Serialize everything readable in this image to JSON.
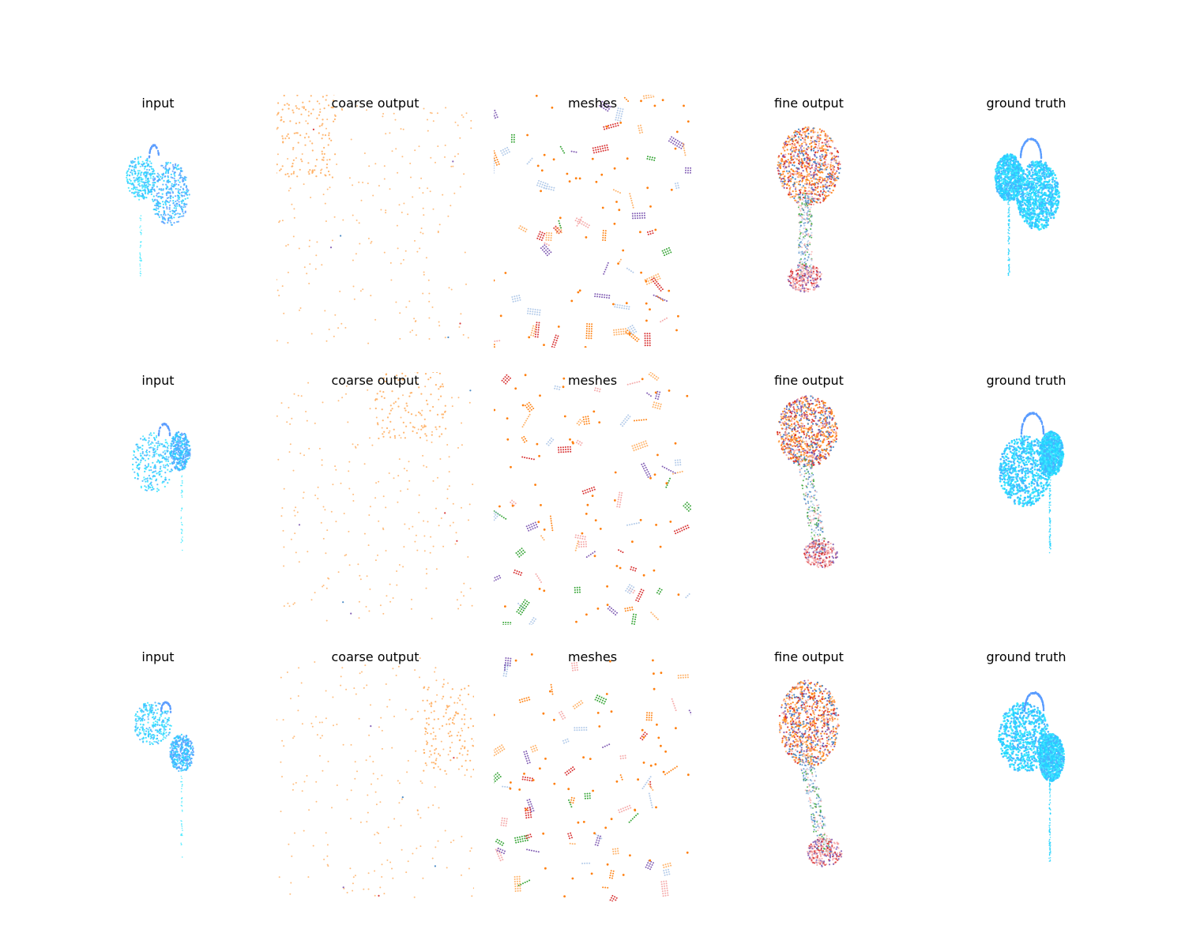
{
  "figure": {
    "rows": [
      {
        "id": "row-1",
        "panels": [
          {
            "key": "input",
            "title": "input",
            "kind": "input"
          },
          {
            "key": "coarse",
            "title": "coarse output",
            "kind": "coarse"
          },
          {
            "key": "meshes",
            "title": "meshes",
            "kind": "meshes"
          },
          {
            "key": "fine",
            "title": "fine output",
            "kind": "fine"
          },
          {
            "key": "gt",
            "title": "ground truth",
            "kind": "gt"
          }
        ]
      },
      {
        "id": "row-2",
        "panels": [
          {
            "key": "input",
            "title": "input",
            "kind": "input"
          },
          {
            "key": "coarse",
            "title": "coarse output",
            "kind": "coarse"
          },
          {
            "key": "meshes",
            "title": "meshes",
            "kind": "meshes"
          },
          {
            "key": "fine",
            "title": "fine output",
            "kind": "fine"
          },
          {
            "key": "gt",
            "title": "ground truth",
            "kind": "gt"
          }
        ]
      },
      {
        "id": "row-3",
        "panels": [
          {
            "key": "input",
            "title": "input",
            "kind": "input"
          },
          {
            "key": "coarse",
            "title": "coarse output",
            "kind": "coarse"
          },
          {
            "key": "meshes",
            "title": "meshes",
            "kind": "meshes"
          },
          {
            "key": "fine",
            "title": "fine output",
            "kind": "fine"
          },
          {
            "key": "gt",
            "title": "ground truth",
            "kind": "gt"
          }
        ]
      }
    ],
    "colors": {
      "cyan_light": "#3de8ff",
      "cyan": "#22d3ff",
      "sky": "#45b4ff",
      "blue": "#5a9cff",
      "orange": "#ff7f0e",
      "orange_light": "#ffae60",
      "red": "#d62728",
      "purple": "#7b55b0",
      "pink": "#f4a6a6",
      "green": "#2ca02c",
      "steel": "#3a7fc0",
      "grey_blue": "#aec7e8"
    }
  }
}
